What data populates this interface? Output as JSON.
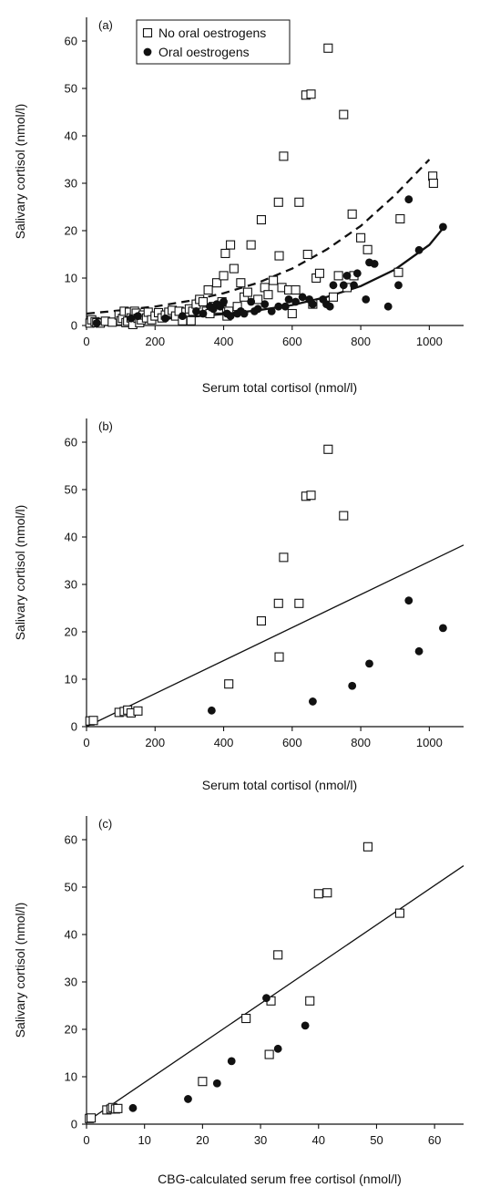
{
  "chart_data": [
    {
      "panel": "(a)",
      "type": "scatter",
      "xlabel": "Serum total cortisol (nmol/l)",
      "ylabel": "Salivary cortisol (nmol/l)",
      "xlim": [
        0,
        1100
      ],
      "ylim": [
        0,
        65
      ],
      "xticks": [
        0,
        200,
        400,
        600,
        800,
        1000
      ],
      "yticks": [
        0,
        10,
        20,
        30,
        40,
        50,
        60
      ],
      "legend": {
        "position": "top-left",
        "entries": [
          {
            "label": "No oral oestrogens",
            "marker": "open-square"
          },
          {
            "label": "Oral oestrogens",
            "marker": "filled-circle"
          }
        ]
      },
      "series": [
        {
          "name": "No oral oestrogens",
          "marker": "open-square",
          "points": [
            [
              10,
              0.5
            ],
            [
              15,
              1.2
            ],
            [
              25,
              0.8
            ],
            [
              30,
              0.6
            ],
            [
              40,
              0.5
            ],
            [
              55,
              0.9
            ],
            [
              75,
              0.7
            ],
            [
              95,
              2.2
            ],
            [
              100,
              1.0
            ],
            [
              105,
              1.5
            ],
            [
              110,
              3.0
            ],
            [
              115,
              0.6
            ],
            [
              120,
              0.9
            ],
            [
              125,
              2.8
            ],
            [
              130,
              1.6
            ],
            [
              135,
              0.2
            ],
            [
              140,
              3.0
            ],
            [
              145,
              2.6
            ],
            [
              150,
              1.5
            ],
            [
              155,
              0.6
            ],
            [
              160,
              1.2
            ],
            [
              165,
              2.2
            ],
            [
              175,
              1.6
            ],
            [
              180,
              2.8
            ],
            [
              190,
              1.2
            ],
            [
              200,
              2.0
            ],
            [
              210,
              2.7
            ],
            [
              220,
              1.6
            ],
            [
              230,
              2.2
            ],
            [
              240,
              2.8
            ],
            [
              250,
              3.2
            ],
            [
              260,
              2.0
            ],
            [
              270,
              3.0
            ],
            [
              280,
              1.0
            ],
            [
              290,
              2.8
            ],
            [
              300,
              3.5
            ],
            [
              305,
              1.0
            ],
            [
              310,
              3.0
            ],
            [
              320,
              4.5
            ],
            [
              330,
              5.5
            ],
            [
              340,
              5.0
            ],
            [
              350,
              3.0
            ],
            [
              355,
              7.5
            ],
            [
              360,
              2.5
            ],
            [
              370,
              4.0
            ],
            [
              380,
              9.0
            ],
            [
              385,
              3.5
            ],
            [
              395,
              5.0
            ],
            [
              400,
              10.5
            ],
            [
              405,
              15.2
            ],
            [
              410,
              2.0
            ],
            [
              415,
              3.0
            ],
            [
              420,
              17.0
            ],
            [
              430,
              12.0
            ],
            [
              440,
              4.0
            ],
            [
              450,
              9.0
            ],
            [
              460,
              6.0
            ],
            [
              470,
              7.0
            ],
            [
              480,
              17.0
            ],
            [
              500,
              5.5
            ],
            [
              510,
              22.3
            ],
            [
              520,
              8.0
            ],
            [
              530,
              6.5
            ],
            [
              545,
              9.5
            ],
            [
              560,
              26.0
            ],
            [
              562,
              14.7
            ],
            [
              570,
              8.0
            ],
            [
              575,
              35.7
            ],
            [
              590,
              7.5
            ],
            [
              600,
              2.5
            ],
            [
              610,
              7.5
            ],
            [
              620,
              26.0
            ],
            [
              640,
              48.6
            ],
            [
              645,
              15.0
            ],
            [
              655,
              48.8
            ],
            [
              660,
              4.5
            ],
            [
              670,
              10.0
            ],
            [
              680,
              11.0
            ],
            [
              705,
              58.5
            ],
            [
              720,
              6.0
            ],
            [
              735,
              10.5
            ],
            [
              750,
              44.5
            ],
            [
              760,
              8.0
            ],
            [
              775,
              23.5
            ],
            [
              780,
              10.5
            ],
            [
              800,
              18.5
            ],
            [
              820,
              16.0
            ],
            [
              910,
              11.2
            ],
            [
              915,
              22.5
            ],
            [
              1010,
              31.5
            ],
            [
              1012,
              30.0
            ]
          ]
        },
        {
          "name": "Oral oestrogens",
          "marker": "filled-circle",
          "points": [
            [
              30,
              0.5
            ],
            [
              130,
              1.5
            ],
            [
              150,
              2.0
            ],
            [
              230,
              1.5
            ],
            [
              280,
              2.0
            ],
            [
              320,
              3.0
            ],
            [
              340,
              2.5
            ],
            [
              360,
              4.0
            ],
            [
              370,
              3.5
            ],
            [
              380,
              4.5
            ],
            [
              390,
              4.0
            ],
            [
              400,
              5.0
            ],
            [
              410,
              2.5
            ],
            [
              420,
              2.0
            ],
            [
              440,
              2.5
            ],
            [
              450,
              3.0
            ],
            [
              460,
              2.5
            ],
            [
              480,
              5.0
            ],
            [
              490,
              3.0
            ],
            [
              500,
              3.5
            ],
            [
              520,
              4.5
            ],
            [
              540,
              3.0
            ],
            [
              560,
              4.0
            ],
            [
              580,
              4.0
            ],
            [
              590,
              5.5
            ],
            [
              610,
              5.0
            ],
            [
              630,
              6.0
            ],
            [
              650,
              5.5
            ],
            [
              660,
              4.5
            ],
            [
              690,
              5.5
            ],
            [
              700,
              4.5
            ],
            [
              710,
              4.0
            ],
            [
              720,
              8.5
            ],
            [
              750,
              8.5
            ],
            [
              760,
              10.5
            ],
            [
              780,
              8.5
            ],
            [
              790,
              11.0
            ],
            [
              815,
              5.5
            ],
            [
              825,
              13.3
            ],
            [
              840,
              13.0
            ],
            [
              880,
              4.0
            ],
            [
              910,
              8.5
            ],
            [
              940,
              26.6
            ],
            [
              970,
              15.9
            ],
            [
              1040,
              20.8
            ]
          ]
        }
      ],
      "fit_curves": [
        {
          "series": "No oral oestrogens",
          "style": "dashed",
          "x": [
            0,
            100,
            200,
            300,
            400,
            500,
            600,
            700,
            800,
            900,
            1000
          ],
          "y": [
            2.5,
            3.2,
            4.0,
            5.2,
            6.8,
            9.0,
            12.0,
            16.0,
            21.0,
            27.5,
            35.0
          ]
        },
        {
          "series": "Oral oestrogens",
          "style": "solid",
          "x": [
            0,
            100,
            200,
            300,
            400,
            500,
            600,
            700,
            800,
            900,
            1000,
            1040
          ],
          "y": [
            0.6,
            0.9,
            1.3,
            1.8,
            2.4,
            3.2,
            4.3,
            6.0,
            8.3,
            11.8,
            17.0,
            20.5
          ]
        }
      ]
    },
    {
      "panel": "(b)",
      "type": "scatter",
      "xlabel": "Serum total cortisol (nmol/l)",
      "ylabel": "Salivary cortisol (nmol/l)",
      "xlim": [
        0,
        1100
      ],
      "ylim": [
        0,
        65
      ],
      "xticks": [
        0,
        200,
        400,
        600,
        800,
        1000
      ],
      "yticks": [
        0,
        10,
        20,
        30,
        40,
        50,
        60
      ],
      "series": [
        {
          "name": "No oral oestrogens",
          "marker": "open-square",
          "points": [
            [
              10,
              1.2
            ],
            [
              20,
              1.3
            ],
            [
              95,
              3.0
            ],
            [
              110,
              3.2
            ],
            [
              120,
              3.5
            ],
            [
              130,
              2.9
            ],
            [
              150,
              3.3
            ],
            [
              415,
              9.0
            ],
            [
              510,
              22.3
            ],
            [
              560,
              26.0
            ],
            [
              562,
              14.7
            ],
            [
              575,
              35.7
            ],
            [
              620,
              26.0
            ],
            [
              640,
              48.6
            ],
            [
              655,
              48.8
            ],
            [
              705,
              58.5
            ],
            [
              750,
              44.5
            ]
          ]
        },
        {
          "name": "Oral oestrogens",
          "marker": "filled-circle",
          "points": [
            [
              365,
              3.4
            ],
            [
              660,
              5.3
            ],
            [
              775,
              8.6
            ],
            [
              825,
              13.3
            ],
            [
              940,
              26.6
            ],
            [
              970,
              15.9
            ],
            [
              1040,
              20.8
            ]
          ]
        }
      ],
      "fit_curves": [
        {
          "style": "solid",
          "x": [
            0,
            1100
          ],
          "y": [
            0,
            38.3
          ]
        }
      ]
    },
    {
      "panel": "(c)",
      "type": "scatter",
      "xlabel": "CBG-calculated serum free cortisol (nmol/l)",
      "ylabel": "Salivary cortisol (nmol/l)",
      "xlim": [
        0,
        65
      ],
      "ylim": [
        0,
        65
      ],
      "xticks": [
        0,
        10,
        20,
        30,
        40,
        50,
        60
      ],
      "yticks": [
        0,
        10,
        20,
        30,
        40,
        50,
        60
      ],
      "series": [
        {
          "name": "No oral oestrogens",
          "marker": "open-square",
          "points": [
            [
              0.5,
              1.2
            ],
            [
              0.8,
              1.3
            ],
            [
              3.5,
              3.0
            ],
            [
              4.2,
              3.2
            ],
            [
              4.5,
              3.5
            ],
            [
              5.0,
              3.2
            ],
            [
              5.4,
              3.3
            ],
            [
              20.0,
              9.0
            ],
            [
              27.5,
              22.3
            ],
            [
              31.8,
              26.0
            ],
            [
              31.5,
              14.7
            ],
            [
              33.0,
              35.7
            ],
            [
              38.5,
              26.0
            ],
            [
              40.0,
              48.6
            ],
            [
              41.5,
              48.8
            ],
            [
              48.5,
              58.5
            ],
            [
              54.0,
              44.5
            ]
          ]
        },
        {
          "name": "Oral oestrogens",
          "marker": "filled-circle",
          "points": [
            [
              8.0,
              3.4
            ],
            [
              17.5,
              5.3
            ],
            [
              22.5,
              8.6
            ],
            [
              25.0,
              13.3
            ],
            [
              31.0,
              26.6
            ],
            [
              33.0,
              15.9
            ],
            [
              37.7,
              20.8
            ]
          ]
        }
      ],
      "fit_curves": [
        {
          "style": "solid",
          "x": [
            0,
            65
          ],
          "y": [
            0.5,
            54.5
          ]
        }
      ]
    }
  ]
}
